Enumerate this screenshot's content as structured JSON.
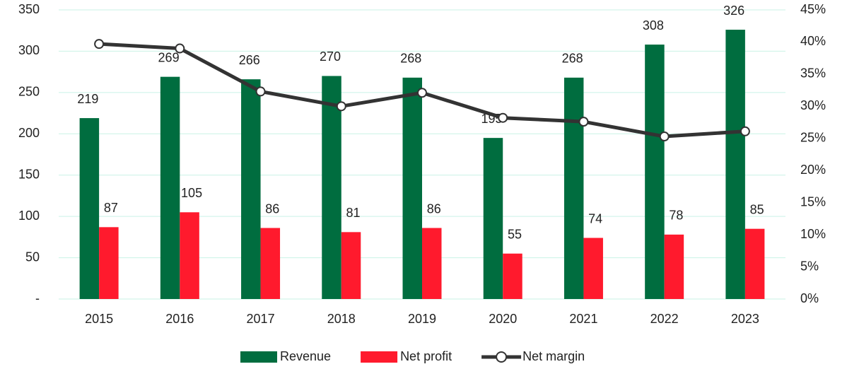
{
  "chart_data": {
    "type": "bar_line",
    "categories": [
      "2015",
      "2016",
      "2017",
      "2018",
      "2019",
      "2020",
      "2021",
      "2022",
      "2023"
    ],
    "series": [
      {
        "name": "Revenue",
        "color": "#006d3f",
        "values": [
          219,
          269,
          266,
          270,
          268,
          195,
          268,
          308,
          326
        ]
      },
      {
        "name": "Net profit",
        "color": "#ff1a2d",
        "values": [
          87,
          105,
          86,
          81,
          86,
          55,
          74,
          78,
          85
        ]
      },
      {
        "name": "Net margin",
        "color": "#333333",
        "axis": "y2",
        "values": [
          39.7,
          39.0,
          32.3,
          30.0,
          32.1,
          28.2,
          27.6,
          25.3,
          26.1
        ]
      }
    ],
    "ylim": [
      0,
      350
    ],
    "yticks": [
      {
        "value": 0,
        "label": "-"
      },
      50,
      100,
      150,
      200,
      250,
      300,
      350
    ],
    "y2lim": [
      0,
      45
    ],
    "y2ticks": [
      {
        "value": 0,
        "label": "0%"
      },
      {
        "value": 5,
        "label": "5%"
      },
      {
        "value": 10,
        "label": "10%"
      },
      {
        "value": 15,
        "label": "15%"
      },
      {
        "value": 20,
        "label": "20%"
      },
      {
        "value": 25,
        "label": "25%"
      },
      {
        "value": 30,
        "label": "30%"
      },
      {
        "value": 35,
        "label": "35%"
      },
      {
        "value": 40,
        "label": "40%"
      },
      {
        "value": 45,
        "label": "45%"
      }
    ],
    "grid": true,
    "legend": "bottom"
  }
}
